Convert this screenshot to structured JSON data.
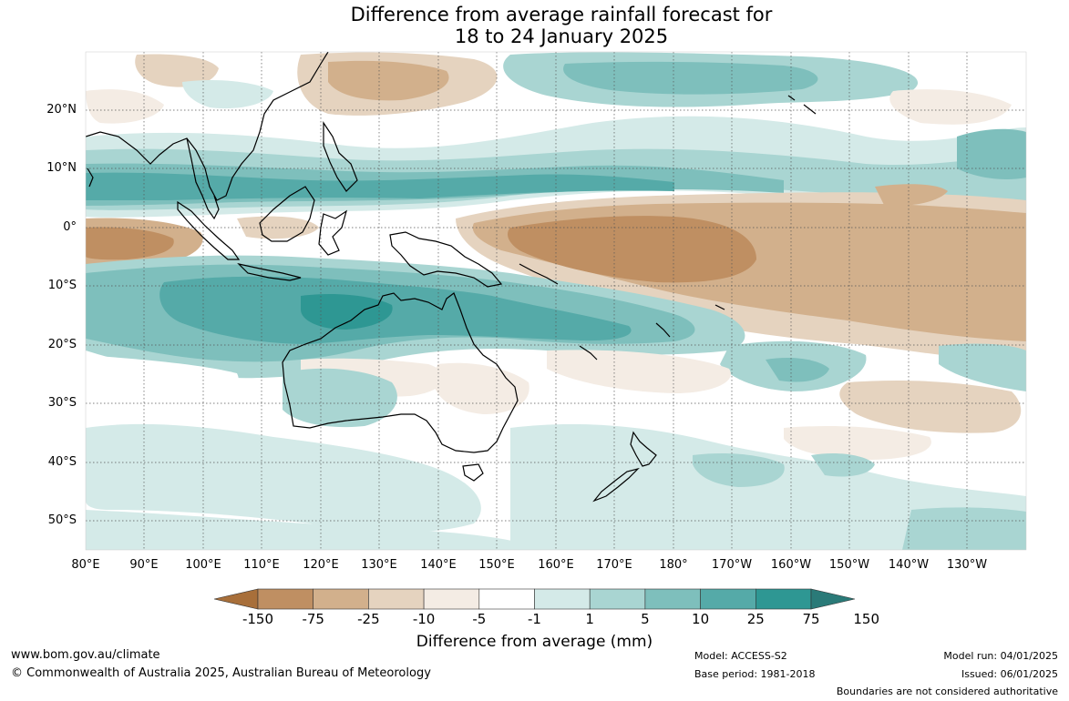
{
  "title": {
    "line1": "Difference from average rainfall forecast for",
    "line2": "18 to 24 January 2025"
  },
  "map": {
    "lat_labels": [
      "20°N",
      "10°N",
      "0°",
      "10°S",
      "20°S",
      "30°S",
      "40°S",
      "50°S"
    ],
    "lon_labels": [
      "80°E",
      "90°E",
      "100°E",
      "110°E",
      "120°E",
      "130°E",
      "140°E",
      "150°E",
      "160°E",
      "170°E",
      "180°",
      "170°W",
      "160°W",
      "150°W",
      "140°W",
      "130°W"
    ]
  },
  "colorbar": {
    "labels": [
      "-150",
      "-75",
      "-25",
      "-10",
      "-5",
      "-1",
      "1",
      "5",
      "10",
      "25",
      "75",
      "150"
    ],
    "colors": [
      "#a86f3a",
      "#bf8f62",
      "#d2b08c",
      "#e5d3bf",
      "#f4ece4",
      "#ffffff",
      "#d4eae8",
      "#a9d5d2",
      "#7ebfbc",
      "#55aaa8",
      "#2e9793",
      "#2a7a78"
    ],
    "title": "Difference from average (mm)"
  },
  "footer": {
    "url": "www.bom.gov.au/climate",
    "copyright": "© Commonwealth of Australia 2025, Australian Bureau of Meteorology",
    "model": "Model: ACCESS-S2",
    "base_period": "Base period: 1981-2018",
    "model_run": "Model run: 04/01/2025",
    "issued": "Issued: 06/01/2025",
    "disclaimer": "Boundaries are not considered authoritative"
  }
}
